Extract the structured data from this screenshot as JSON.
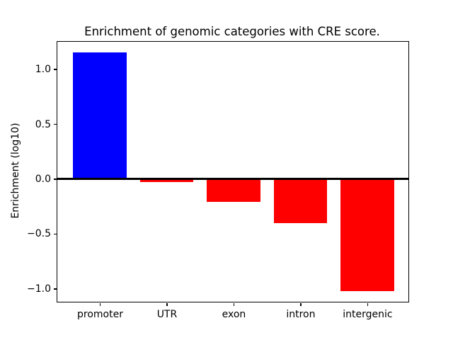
{
  "figure": {
    "background": "#ffffff"
  },
  "chart_data": {
    "type": "bar",
    "title": "Enrichment of genomic categories with CRE score.",
    "xlabel": "",
    "ylabel": "Enrichment (log10)",
    "categories": [
      "promoter",
      "UTR",
      "exon",
      "intron",
      "intergenic"
    ],
    "values": [
      1.15,
      -0.03,
      -0.21,
      -0.4,
      -1.02
    ],
    "bar_colors": [
      "#0000ff",
      "#ff0000",
      "#ff0000",
      "#ff0000",
      "#ff0000"
    ],
    "bar_width_units": 0.8,
    "xlim": [
      -0.635,
      4.615
    ],
    "ylim": [
      -1.12,
      1.25
    ],
    "yticks": [
      1.0,
      0.5,
      0.0,
      -0.5,
      -1.0
    ],
    "ytick_labels": [
      "1.0",
      "0.5",
      "0.0",
      "−0.5",
      "−1.0"
    ],
    "zero_line": true,
    "grid": false,
    "legend": null,
    "axis_color": "#000000",
    "plot_background": "#ffffff"
  }
}
